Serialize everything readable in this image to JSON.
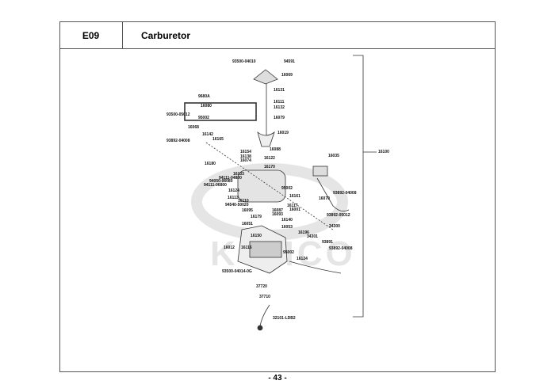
{
  "header": {
    "section_code": "E09",
    "title": "Carburetor"
  },
  "page_number": "- 43 -",
  "watermark": "KYMCO",
  "labels": [
    "93500-04010",
    "94591",
    "16069",
    "16131",
    "9680A",
    "16111",
    "16080",
    "16132",
    "93500-05012",
    "95002",
    "16079",
    "16068",
    "16019",
    "16142",
    "93892-04008",
    "16165",
    "16088",
    "16154",
    "16138",
    "16122",
    "16074",
    "16180",
    "16170",
    "16133",
    "94111-04800",
    "94050-06080",
    "94111-06800",
    "95002",
    "16035",
    "93892-04008",
    "16124",
    "16161",
    "16070",
    "16113",
    "16110",
    "16117",
    "94540-50020",
    "16001",
    "16087",
    "16093",
    "93892-05012",
    "16095",
    "16179",
    "16140",
    "34300",
    "16051",
    "16053",
    "16196",
    "34301",
    "16150",
    "93891",
    "93892-04008",
    "16012",
    "16116",
    "95002",
    "16124",
    "93500-04014-0G",
    "37720",
    "37710",
    "32101-LDB2",
    "16100"
  ]
}
